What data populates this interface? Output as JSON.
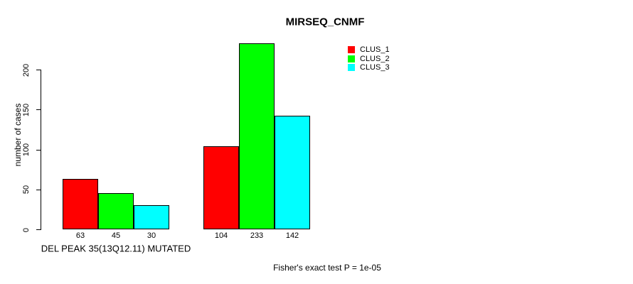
{
  "chart_data": {
    "type": "bar",
    "title": "MIRSEQ_CNMF",
    "ylabel": "number of cases",
    "xlabel": "DEL PEAK 35(13Q12.11) MUTATED",
    "categories": [
      "DEL PEAK 35(13Q12.11) MUTATED",
      ""
    ],
    "series": [
      {
        "name": "CLUS_1",
        "color": "#ff0000",
        "values": [
          63,
          104
        ]
      },
      {
        "name": "CLUS_2",
        "color": "#00ff00",
        "values": [
          45,
          233
        ]
      },
      {
        "name": "CLUS_3",
        "color": "#00ffff",
        "values": [
          30,
          142
        ]
      }
    ],
    "y_ticks": [
      0,
      50,
      100,
      150,
      200
    ],
    "ylim": [
      0,
      240
    ],
    "grid": false,
    "legend_position": "top-right",
    "bar_value_labels_shown": true,
    "annotation": "Fisher's exact test P = 1e-05"
  }
}
